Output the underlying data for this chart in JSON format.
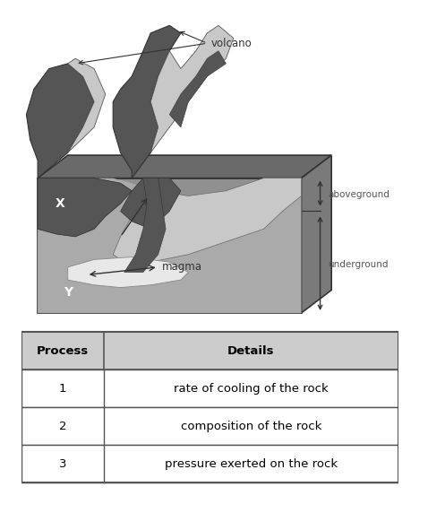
{
  "bg_color": "#ffffff",
  "diagram": {
    "box_front": "#909090",
    "box_top": "#6a6a6a",
    "box_right": "#7a7a7a",
    "dark_rock": "#555555",
    "mid_gray": "#aaaaaa",
    "light_gray": "#c8c8c8",
    "magma_white": "#e8e8e8",
    "label_x": "X",
    "label_y": "Y",
    "label_volcano": "volcano",
    "label_aboveground": "aboveground",
    "label_underground": "underground",
    "label_magma": "magma"
  },
  "table": {
    "headers": [
      "Process",
      "Details"
    ],
    "rows": [
      [
        "1",
        "rate of cooling of the rock"
      ],
      [
        "2",
        "composition of the rock"
      ],
      [
        "3",
        "pressure exerted on the rock"
      ]
    ],
    "header_bg": "#cccccc",
    "row_bg": "#ffffff",
    "border_color": "#555555",
    "font_size": 9.5
  }
}
